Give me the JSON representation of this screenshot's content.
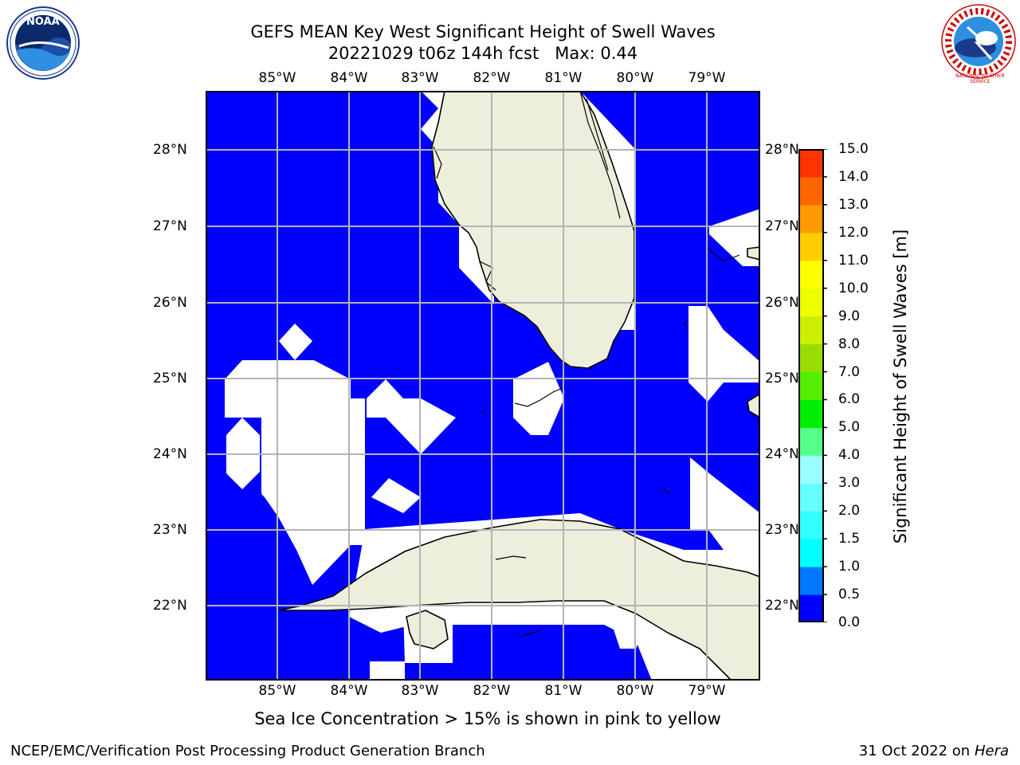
{
  "title_line1": "GEFS MEAN Key West Significant Height of Swell Waves",
  "title_line2": "20221029 t06z 144h fcst   Max: 0.44",
  "lon_labels": [
    "85°W",
    "84°W",
    "83°W",
    "82°W",
    "81°W",
    "80°W",
    "79°W"
  ],
  "lat_labels": [
    "28°N",
    "27°N",
    "26°N",
    "25°N",
    "24°N",
    "23°N",
    "22°N"
  ],
  "colorbar": {
    "label": "Significant Height of Swell Waves [m]",
    "ticks": [
      "0.0",
      "0.5",
      "1.0",
      "1.5",
      "2.0",
      "3.0",
      "4.0",
      "5.0",
      "6.0",
      "7.0",
      "8.0",
      "9.0",
      "10.0",
      "11.0",
      "12.0",
      "13.0",
      "14.0",
      "15.0"
    ],
    "colors": [
      "#0000ff",
      "#0078ff",
      "#00ffff",
      "#33ffff",
      "#66ffff",
      "#99ffff",
      "#55ff88",
      "#00ee00",
      "#55ee00",
      "#99dd00",
      "#ccee00",
      "#eeff00",
      "#ffff00",
      "#ffcc00",
      "#ff9900",
      "#ff6600",
      "#ff3300",
      "#ff0000"
    ]
  },
  "colors": {
    "water": "#0000ff",
    "land": "#eeeedc",
    "nodata": "#ffffff",
    "grid": "#b4b4b4"
  },
  "footnote": "Sea Ice Concentration > 15% is shown in pink to yellow",
  "credit": "NCEP/EMC/Verification Post Processing Product Generation Branch",
  "date": "31 Oct 2022 on",
  "host": "Hera",
  "logos": {
    "left": "NOAA",
    "right": "NATIONAL WEATHER SERVICE"
  }
}
